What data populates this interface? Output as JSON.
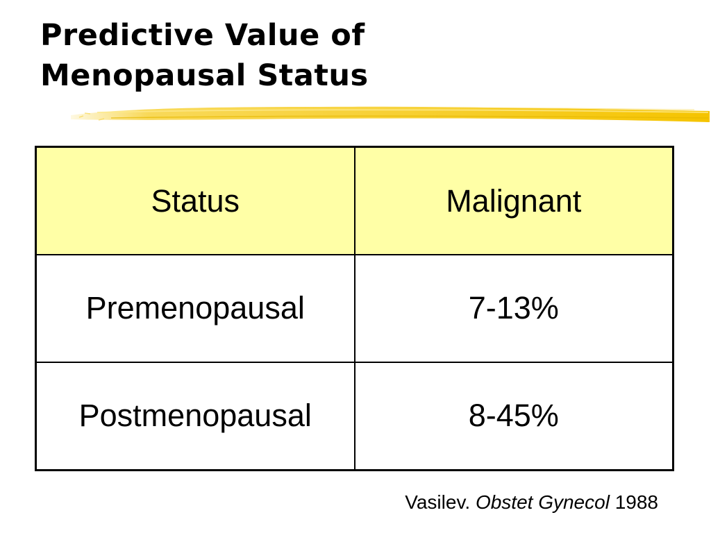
{
  "title": {
    "line1": "Predictive Value of",
    "line2": "Menopausal Status"
  },
  "colors": {
    "highlighter": "#f7d23c",
    "header_fill": "#ffffa6",
    "border": "#000000"
  },
  "table": {
    "headers": [
      "Status",
      "Malignant"
    ],
    "rows": [
      [
        "Premenopausal",
        "7-13%"
      ],
      [
        "Postmenopausal",
        "8-45%"
      ]
    ]
  },
  "citation": {
    "author": "Vasilev.",
    "journal": "Obstet Gynecol",
    "year": "1988"
  }
}
